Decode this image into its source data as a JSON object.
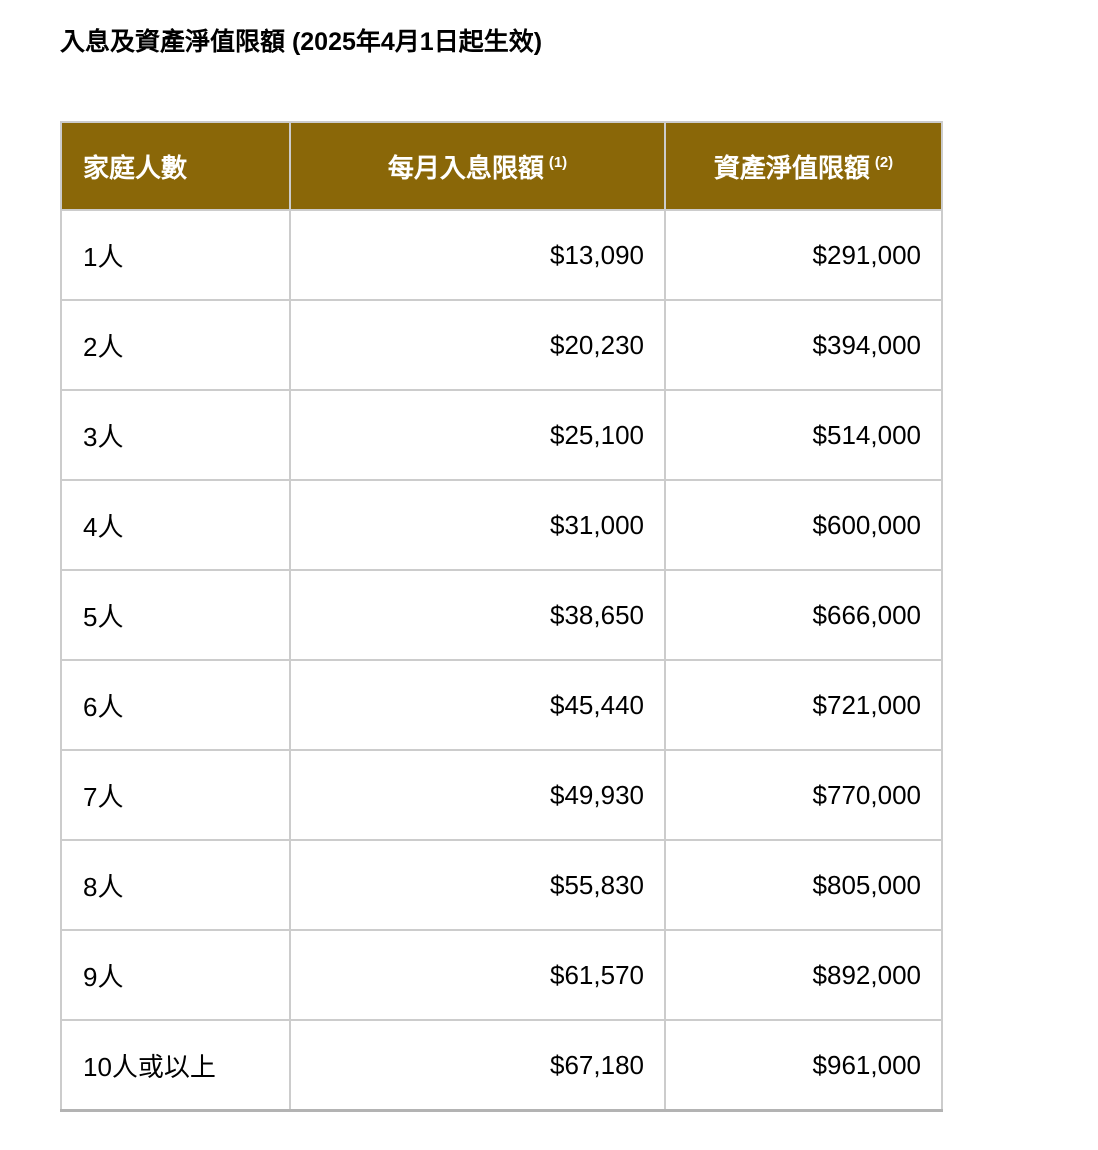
{
  "title": "入息及資產淨值限額 (2025年4月1日起生效)",
  "table": {
    "columns": [
      {
        "label": "家庭人數",
        "sup": ""
      },
      {
        "label": "每月入息限額",
        "sup": "(1)"
      },
      {
        "label": "資產淨值限額",
        "sup": "(2)"
      }
    ],
    "rows": [
      [
        "1人",
        "$13,090",
        "$291,000"
      ],
      [
        "2人",
        "$20,230",
        "$394,000"
      ],
      [
        "3人",
        "$25,100",
        "$514,000"
      ],
      [
        "4人",
        "$31,000",
        "$600,000"
      ],
      [
        "5人",
        "$38,650",
        "$666,000"
      ],
      [
        "6人",
        "$45,440",
        "$721,000"
      ],
      [
        "7人",
        "$49,930",
        "$770,000"
      ],
      [
        "8人",
        "$55,830",
        "$805,000"
      ],
      [
        "9人",
        "$61,570",
        "$892,000"
      ],
      [
        "10人或以上",
        "$67,180",
        "$961,000"
      ]
    ]
  },
  "colors": {
    "header_bg": "#8a6708",
    "header_text": "#ffffff",
    "row_border": "#cccccc",
    "table_bottom_border": "#b3b3b3",
    "text": "#000000",
    "background": "#ffffff"
  }
}
